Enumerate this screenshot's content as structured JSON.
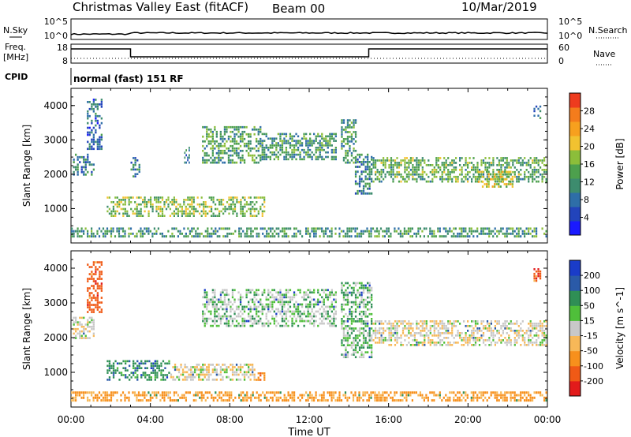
{
  "header": {
    "title": "Christmas Valley East (fitACF)",
    "beam": "Beam 00",
    "date": "10/Mar/2019"
  },
  "panels": {
    "nsky": {
      "label": "N.Sky",
      "ticks": [
        "10^5",
        "10^0"
      ],
      "right_label": "N.Search",
      "right_ticks": [
        "10^5",
        "10^0"
      ]
    },
    "freq": {
      "label": "Freq.",
      "unit": "[MHz]",
      "ticks": [
        "18",
        "8"
      ],
      "right_label": "Nave",
      "right_ticks": [
        "60",
        "0"
      ]
    },
    "cpid": {
      "label": "CPID",
      "text": "normal (fast) 151 RF"
    }
  },
  "colors": {
    "power": [
      "#1a1aff",
      "#2244bb",
      "#2e6ea8",
      "#3d8c6e",
      "#4da04d",
      "#8cbe3a",
      "#f2c230",
      "#f7a01e",
      "#f47c1c",
      "#ee3b1e"
    ],
    "velocity": [
      "#e21b1b",
      "#f05a16",
      "#f7901c",
      "#f7b858",
      "#c8c8c8",
      "#4fbf3a",
      "#2f8f55",
      "#2a5aa8",
      "#1a3cc8"
    ]
  },
  "chart_data": [
    {
      "type": "heatmap",
      "name": "power",
      "ylabel": "Slant Range [km]",
      "yticks": [
        "1000",
        "2000",
        "3000",
        "4000"
      ],
      "ylim": [
        0,
        4500
      ],
      "xlim": [
        0,
        24
      ],
      "colorbar_label": "Power [dB]",
      "colorbar_ticks": [
        "4",
        "8",
        "12",
        "16",
        "20",
        "24",
        "28"
      ],
      "colorbar_range": [
        0,
        30
      ],
      "regions": [
        {
          "t0": 0.1,
          "t1": 1.2,
          "r0": 1950,
          "r1": 2600,
          "level": 8
        },
        {
          "t0": 0.8,
          "t1": 1.6,
          "r0": 2700,
          "r1": 4200,
          "level": 6
        },
        {
          "t0": 1.8,
          "t1": 9.8,
          "r0": 750,
          "r1": 1350,
          "level": 14
        },
        {
          "t0": 3.0,
          "t1": 3.5,
          "r0": 1900,
          "r1": 2500,
          "level": 7
        },
        {
          "t0": 5.7,
          "t1": 6.0,
          "r0": 2300,
          "r1": 2800,
          "level": 7
        },
        {
          "t0": 6.6,
          "t1": 9.6,
          "r0": 2300,
          "r1": 3400,
          "level": 11
        },
        {
          "t0": 9.6,
          "t1": 13.4,
          "r0": 2400,
          "r1": 3200,
          "level": 10
        },
        {
          "t0": 13.6,
          "t1": 14.4,
          "r0": 2300,
          "r1": 3600,
          "level": 10
        },
        {
          "t0": 14.3,
          "t1": 15.2,
          "r0": 1400,
          "r1": 2600,
          "level": 8
        },
        {
          "t0": 15.2,
          "t1": 24.0,
          "r0": 1750,
          "r1": 2500,
          "level": 12
        },
        {
          "t0": 20.5,
          "t1": 22.3,
          "r0": 1600,
          "r1": 2100,
          "level": 16
        },
        {
          "t0": 23.3,
          "t1": 23.7,
          "r0": 3600,
          "r1": 4000,
          "level": 6
        },
        {
          "t0": 0.0,
          "t1": 24.0,
          "r0": 150,
          "r1": 450,
          "level": 10
        }
      ]
    },
    {
      "type": "heatmap",
      "name": "velocity",
      "ylabel": "Slant Range [km]",
      "yticks": [
        "1000",
        "2000",
        "3000",
        "4000"
      ],
      "ylim": [
        0,
        4500
      ],
      "xlim": [
        0,
        24
      ],
      "colorbar_label": "Velocity [m s^-1]",
      "colorbar_ticks": [
        "-200",
        "-100",
        "-50",
        "-15",
        "15",
        "50",
        "100",
        "200"
      ],
      "regions": [
        {
          "t0": 0.1,
          "t1": 1.2,
          "r0": 1950,
          "r1": 2600,
          "velocity": 0
        },
        {
          "t0": 0.8,
          "t1": 1.6,
          "r0": 2700,
          "r1": 4200,
          "velocity": -120
        },
        {
          "t0": 1.8,
          "t1": 5.0,
          "r0": 750,
          "r1": 1350,
          "velocity": 60
        },
        {
          "t0": 5.0,
          "t1": 9.3,
          "r0": 750,
          "r1": 1250,
          "velocity": 0
        },
        {
          "t0": 9.3,
          "t1": 9.8,
          "r0": 750,
          "r1": 1000,
          "velocity": -60
        },
        {
          "t0": 6.6,
          "t1": 13.4,
          "r0": 2300,
          "r1": 3400,
          "velocity": 20
        },
        {
          "t0": 13.6,
          "t1": 15.2,
          "r0": 1400,
          "r1": 3600,
          "velocity": 30
        },
        {
          "t0": 15.2,
          "t1": 24.0,
          "r0": 1750,
          "r1": 2500,
          "velocity": 0
        },
        {
          "t0": 23.3,
          "t1": 23.7,
          "r0": 3600,
          "r1": 4000,
          "velocity": -150
        },
        {
          "t0": 0.0,
          "t1": 24.0,
          "r0": 150,
          "r1": 450,
          "velocity": -40
        }
      ]
    }
  ],
  "xaxis": {
    "label": "Time UT",
    "ticks": [
      "00:00",
      "04:00",
      "08:00",
      "12:00",
      "16:00",
      "20:00",
      "00:00"
    ]
  }
}
